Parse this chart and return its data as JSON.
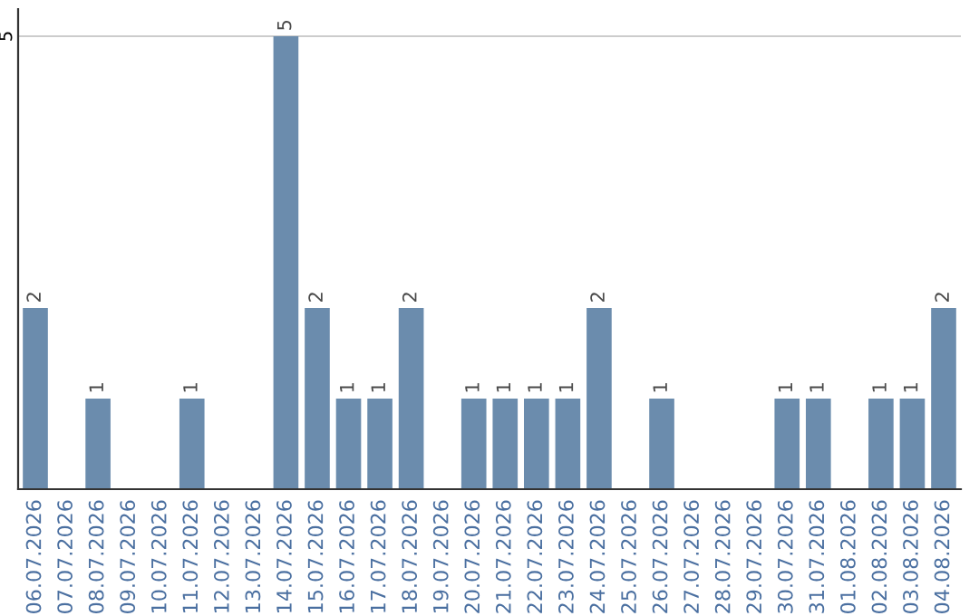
{
  "chart_data": {
    "type": "bar",
    "categories": [
      "06.07.2026",
      "07.07.2026",
      "08.07.2026",
      "09.07.2026",
      "10.07.2026",
      "11.07.2026",
      "12.07.2026",
      "13.07.2026",
      "14.07.2026",
      "15.07.2026",
      "16.07.2026",
      "17.07.2026",
      "18.07.2026",
      "19.07.2026",
      "20.07.2026",
      "21.07.2026",
      "22.07.2026",
      "23.07.2026",
      "24.07.2026",
      "25.07.2026",
      "26.07.2026",
      "27.07.2026",
      "28.07.2026",
      "29.07.2026",
      "30.07.2026",
      "31.07.2026",
      "01.08.2026",
      "02.08.2026",
      "03.08.2026",
      "04.08.2026"
    ],
    "values": [
      2,
      0,
      1,
      0,
      0,
      1,
      0,
      0,
      5,
      2,
      1,
      1,
      2,
      0,
      1,
      1,
      1,
      1,
      2,
      0,
      1,
      0,
      0,
      0,
      1,
      1,
      0,
      1,
      1,
      2
    ],
    "value_labels": [
      "2",
      null,
      "1",
      null,
      null,
      "1",
      null,
      null,
      "5",
      "2",
      "1",
      "1",
      "2",
      null,
      "1",
      "1",
      "1",
      "1",
      "2",
      null,
      "1",
      null,
      null,
      null,
      "1",
      "1",
      null,
      "1",
      "1",
      "2"
    ],
    "color": "#6b8cad",
    "ylim": [
      0,
      5.3
    ],
    "yticks": [
      5
    ],
    "grid": "y"
  }
}
